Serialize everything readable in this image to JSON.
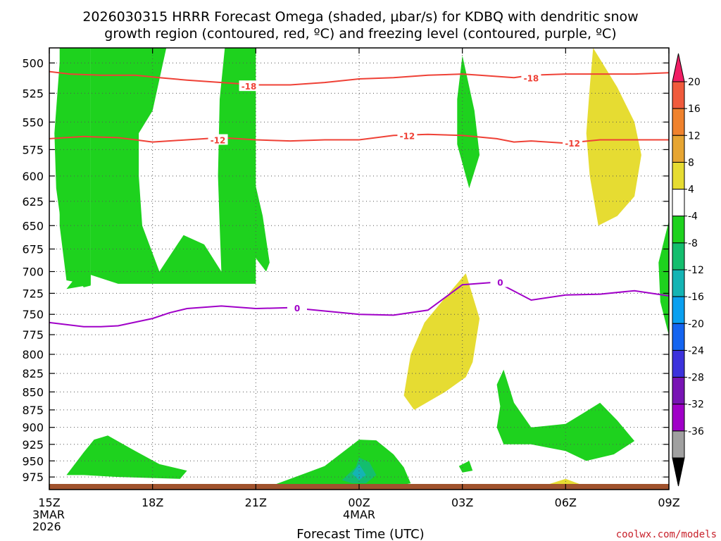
{
  "chart_data": {
    "type": "time-height",
    "title_line1": "2026030315 HRRR Forecast Omega (shaded, μbar/s) for KDBQ with dendritic snow",
    "title_line2": "growth region (contoured, red, ºC) and freezing level (contoured, purple, ºC)",
    "xlabel": "Forecast Time (UTC)",
    "credit": "coolwx.com/models",
    "x_range_hours": [
      0,
      18
    ],
    "y_range_mb": [
      488,
      995
    ],
    "y_ticks": [
      "500",
      "525",
      "550",
      "575",
      "600",
      "625",
      "650",
      "675",
      "700",
      "725",
      "750",
      "775",
      "800",
      "825",
      "850",
      "875",
      "900",
      "925",
      "950",
      "975"
    ],
    "x_ticks": [
      {
        "h": 0,
        "lines": [
          "15Z",
          "3MAR",
          "2026"
        ]
      },
      {
        "h": 3,
        "lines": [
          "18Z"
        ]
      },
      {
        "h": 6,
        "lines": [
          "21Z"
        ]
      },
      {
        "h": 9,
        "lines": [
          "00Z",
          "4MAR"
        ]
      },
      {
        "h": 12,
        "lines": [
          "03Z"
        ]
      },
      {
        "h": 15,
        "lines": [
          "06Z"
        ]
      },
      {
        "h": 18,
        "lines": [
          "09Z"
        ]
      }
    ],
    "colorbar": {
      "labels": [
        "20",
        "16",
        "12",
        "8",
        "4",
        "-4",
        "-8",
        "-12",
        "-16",
        "-20",
        "-24",
        "-28",
        "-32",
        "-36"
      ],
      "colors": [
        "#f01e64",
        "#f05a3c",
        "#f0822d",
        "#e6a532",
        "#e6dc32",
        "#ffffff",
        "#1ed21e",
        "#14be6e",
        "#14b4b4",
        "#0aa0f0",
        "#1464f0",
        "#3c32dc",
        "#7814b4",
        "#a000c8",
        "#a0a0a0",
        "#000000"
      ]
    },
    "red_contours": [
      {
        "label": "-18",
        "color": "#ef4136",
        "points": [
          [
            0,
            507
          ],
          [
            0.6,
            509
          ],
          [
            1.5,
            510
          ],
          [
            2.5,
            510
          ],
          [
            3.2,
            512
          ],
          [
            4,
            514
          ],
          [
            5,
            516
          ],
          [
            6,
            518
          ],
          [
            7,
            518
          ],
          [
            8,
            516
          ],
          [
            9,
            513
          ],
          [
            10,
            512
          ],
          [
            11,
            510
          ],
          [
            12,
            509
          ],
          [
            12.5,
            510
          ],
          [
            13,
            511
          ],
          [
            13.5,
            512
          ],
          [
            14,
            510
          ],
          [
            15,
            509
          ],
          [
            16,
            509
          ],
          [
            17,
            509
          ],
          [
            18,
            508
          ]
        ],
        "labels_at": [
          [
            5.8,
            519
          ],
          [
            14,
            512
          ]
        ]
      },
      {
        "label": "-12",
        "color": "#ef4136",
        "points": [
          [
            0,
            565
          ],
          [
            1,
            563
          ],
          [
            2,
            564
          ],
          [
            3,
            568
          ],
          [
            4,
            566
          ],
          [
            5,
            564
          ],
          [
            6,
            566
          ],
          [
            7,
            567
          ],
          [
            8,
            566
          ],
          [
            9,
            566
          ],
          [
            10,
            562
          ],
          [
            11,
            561
          ],
          [
            12,
            562
          ],
          [
            13,
            565
          ],
          [
            13.5,
            568
          ],
          [
            14,
            567
          ],
          [
            15,
            569
          ],
          [
            16,
            566
          ],
          [
            17,
            566
          ],
          [
            18,
            566
          ]
        ],
        "labels_at": [
          [
            4.9,
            566
          ],
          [
            10.4,
            562
          ],
          [
            15.2,
            569
          ]
        ]
      }
    ],
    "purple_contours": [
      {
        "label": "0",
        "color": "#a000c8",
        "points": [
          [
            0,
            760
          ],
          [
            1,
            765
          ],
          [
            1.5,
            765
          ],
          [
            2,
            764
          ],
          [
            3,
            755
          ],
          [
            3.5,
            748
          ],
          [
            4,
            743
          ],
          [
            5,
            740
          ],
          [
            6,
            743
          ],
          [
            7,
            742
          ],
          [
            8,
            746
          ],
          [
            9,
            750
          ],
          [
            10,
            751
          ],
          [
            11,
            745
          ],
          [
            12,
            715
          ],
          [
            13,
            712
          ],
          [
            14,
            733
          ],
          [
            15,
            727
          ],
          [
            16,
            726
          ],
          [
            17,
            722
          ],
          [
            18,
            728
          ]
        ],
        "labels_at": [
          [
            7.2,
            742
          ],
          [
            13.1,
            712
          ]
        ]
      }
    ],
    "shaded_regions": [
      {
        "name": "omega-neg4-area-1",
        "color": "#1ed21e",
        "points": [
          [
            0.3,
            488
          ],
          [
            1.2,
            488
          ],
          [
            1.2,
            715
          ],
          [
            0.5,
            710
          ],
          [
            0.3,
            650
          ],
          [
            0.3,
            488
          ]
        ]
      },
      {
        "name": "omega-neg4-area-2",
        "color": "#1ed21e",
        "points": [
          [
            0.5,
            720
          ],
          [
            0.9,
            700
          ],
          [
            1.3,
            705
          ],
          [
            2.0,
            714
          ],
          [
            2.5,
            714
          ],
          [
            3.0,
            714
          ],
          [
            3.5,
            714
          ],
          [
            3.9,
            714
          ],
          [
            4.3,
            714
          ],
          [
            4.6,
            714
          ],
          [
            5.0,
            714
          ],
          [
            5.6,
            714
          ],
          [
            6.0,
            714
          ],
          [
            6.0,
            488
          ],
          [
            5.1,
            488
          ],
          [
            4.95,
            530
          ],
          [
            4.9,
            600
          ],
          [
            4.95,
            650
          ],
          [
            5.0,
            700
          ],
          [
            4.5,
            670
          ],
          [
            3.9,
            660
          ],
          [
            3.2,
            700
          ],
          [
            2.7,
            650
          ],
          [
            2.6,
            600
          ],
          [
            2.6,
            560
          ],
          [
            3.0,
            540
          ],
          [
            3.4,
            488
          ],
          [
            1.2,
            488
          ],
          [
            1.2,
            715
          ],
          [
            0.5,
            720
          ]
        ]
      },
      {
        "name": "omega-neg4-area-3",
        "color": "#1ed21e",
        "points": [
          [
            1.2,
            488
          ],
          [
            1.2,
            716
          ],
          [
            1.0,
            718
          ],
          [
            0.5,
            690
          ],
          [
            0.2,
            612
          ],
          [
            0.15,
            560
          ],
          [
            0.3,
            500
          ],
          [
            0.5,
            488
          ],
          [
            1.2,
            488
          ]
        ]
      },
      {
        "name": "omega-neg4-area-4",
        "color": "#1ed21e",
        "points": [
          [
            5.8,
            620
          ],
          [
            6.0,
            610
          ],
          [
            6.2,
            640
          ],
          [
            6.4,
            690
          ],
          [
            6.3,
            700
          ],
          [
            5.9,
            680
          ],
          [
            5.75,
            650
          ],
          [
            5.8,
            620
          ]
        ]
      },
      {
        "name": "omega-neg4-area-5",
        "color": "#1ed21e",
        "points": [
          [
            12,
            494
          ],
          [
            12.35,
            540
          ],
          [
            12.5,
            580
          ],
          [
            12.2,
            612
          ],
          [
            11.85,
            570
          ],
          [
            11.85,
            530
          ],
          [
            12,
            494
          ]
        ]
      },
      {
        "name": "omega-neg4-area-6",
        "color": "#1ed21e",
        "points": [
          [
            18,
            645
          ],
          [
            17.7,
            690
          ],
          [
            17.75,
            735
          ],
          [
            18,
            776
          ],
          [
            18,
            645
          ]
        ]
      },
      {
        "name": "omega-neg4-area-7",
        "color": "#1ed21e",
        "points": [
          [
            0.5,
            972
          ],
          [
            1.0,
            937
          ],
          [
            1.3,
            918
          ],
          [
            1.7,
            912
          ],
          [
            2.5,
            935
          ],
          [
            3.2,
            955
          ],
          [
            4.0,
            965
          ],
          [
            3.8,
            978
          ],
          [
            2.0,
            975
          ],
          [
            1.0,
            972
          ],
          [
            0.5,
            972
          ]
        ]
      },
      {
        "name": "omega-neg4-area-8",
        "color": "#1ed21e",
        "points": [
          [
            5,
            988
          ],
          [
            6.5,
            988
          ],
          [
            7.5,
            968
          ],
          [
            8.0,
            958
          ],
          [
            9.0,
            918
          ],
          [
            9.5,
            919
          ],
          [
            10.0,
            940
          ],
          [
            10.3,
            960
          ],
          [
            10.5,
            985
          ],
          [
            10.0,
            990
          ],
          [
            9.0,
            990
          ],
          [
            8.0,
            990
          ],
          [
            7.0,
            988
          ],
          [
            5,
            988
          ]
        ]
      },
      {
        "name": "omega-neg4-area-9",
        "color": "#1ed21e",
        "points": [
          [
            11.9,
            958
          ],
          [
            12.2,
            950
          ],
          [
            12.3,
            965
          ],
          [
            12.0,
            968
          ],
          [
            11.9,
            958
          ]
        ]
      },
      {
        "name": "omega-neg4-area-10",
        "color": "#1ed21e",
        "points": [
          [
            13.0,
            840
          ],
          [
            13.2,
            820
          ],
          [
            13.5,
            865
          ],
          [
            14.0,
            900
          ],
          [
            15.0,
            895
          ],
          [
            15.5,
            880
          ],
          [
            16.0,
            865
          ],
          [
            16.5,
            890
          ],
          [
            17.0,
            920
          ],
          [
            16.4,
            940
          ],
          [
            15.6,
            950
          ],
          [
            15.0,
            935
          ],
          [
            14.0,
            925
          ],
          [
            13.2,
            925
          ],
          [
            13.0,
            900
          ],
          [
            13.1,
            870
          ],
          [
            13.0,
            840
          ]
        ]
      },
      {
        "name": "omega-neg8-area-1",
        "color": "#14be6e",
        "points": [
          [
            8.5,
            980
          ],
          [
            8.9,
            960
          ],
          [
            9.0,
            945
          ],
          [
            9.3,
            952
          ],
          [
            9.5,
            972
          ],
          [
            9.2,
            985
          ],
          [
            8.8,
            985
          ],
          [
            8.5,
            980
          ]
        ]
      },
      {
        "name": "omega-neg12-area-1",
        "color": "#14b4b4",
        "points": [
          [
            8.8,
            970
          ],
          [
            9.0,
            955
          ],
          [
            9.2,
            972
          ],
          [
            9.0,
            980
          ],
          [
            8.8,
            970
          ]
        ]
      },
      {
        "name": "omega-pos4-area-1",
        "color": "#e6dc32",
        "points": [
          [
            15.8,
            488
          ],
          [
            16.5,
            520
          ],
          [
            17.0,
            550
          ],
          [
            17.2,
            580
          ],
          [
            17.0,
            620
          ],
          [
            16.5,
            640
          ],
          [
            15.95,
            650
          ],
          [
            15.7,
            600
          ],
          [
            15.6,
            560
          ],
          [
            15.7,
            520
          ],
          [
            15.8,
            488
          ]
        ]
      },
      {
        "name": "omega-pos4-area-2",
        "color": "#e6dc32",
        "points": [
          [
            12.1,
            702
          ],
          [
            12.5,
            755
          ],
          [
            12.3,
            810
          ],
          [
            12.1,
            830
          ],
          [
            11.5,
            850
          ],
          [
            10.6,
            875
          ],
          [
            10.3,
            855
          ],
          [
            10.5,
            800
          ],
          [
            10.9,
            760
          ],
          [
            11.4,
            735
          ],
          [
            12.1,
            702
          ]
        ]
      },
      {
        "name": "omega-pos4-area-3",
        "color": "#e6dc32",
        "points": [
          [
            14.3,
            990
          ],
          [
            15.0,
            978
          ],
          [
            15.6,
            990
          ],
          [
            14.3,
            990
          ]
        ]
      }
    ]
  }
}
